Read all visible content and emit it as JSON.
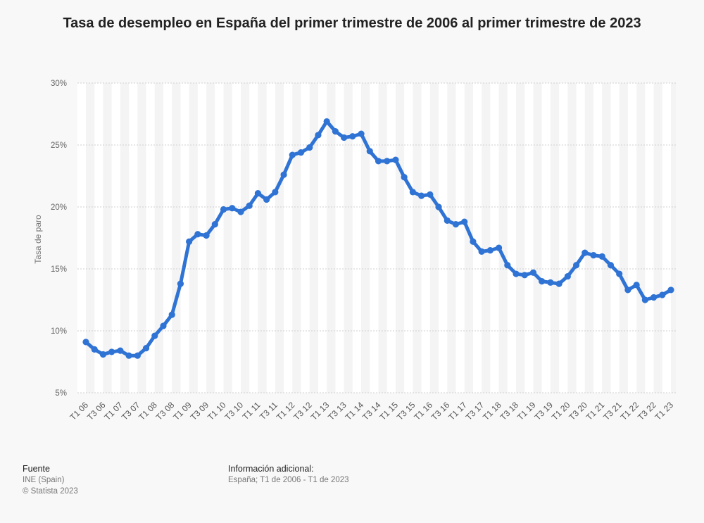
{
  "chart_data": {
    "type": "line",
    "title": "Tasa de desempleo en España del primer trimestre de 2006 al primer trimestre de 2023",
    "ylabel": "Tasa de paro",
    "xlabel": "",
    "ylim": [
      5,
      30
    ],
    "yticks": [
      5,
      10,
      15,
      20,
      25,
      30
    ],
    "ytick_suffix": "%",
    "grid": true,
    "line_color": "#2f73d4",
    "x": [
      "T1 06",
      "T2 06",
      "T3 06",
      "T4 06",
      "T1 07",
      "T2 07",
      "T3 07",
      "T4 07",
      "T1 08",
      "T2 08",
      "T3 08",
      "T4 08",
      "T1 09",
      "T2 09",
      "T3 09",
      "T4 09",
      "T1 10",
      "T2 10",
      "T3 10",
      "T4 10",
      "T1 11",
      "T2 11",
      "T3 11",
      "T4 11",
      "T1 12",
      "T2 12",
      "T3 12",
      "T4 12",
      "T1 13",
      "T2 13",
      "T3 13",
      "T4 13",
      "T1 14",
      "T2 14",
      "T3 14",
      "T4 14",
      "T1 15",
      "T2 15",
      "T3 15",
      "T4 15",
      "T1 16",
      "T2 16",
      "T3 16",
      "T4 16",
      "T1 17",
      "T2 17",
      "T3 17",
      "T4 17",
      "T1 18",
      "T2 18",
      "T3 18",
      "T4 18",
      "T1 19",
      "T2 19",
      "T3 19",
      "T4 19",
      "T1 20",
      "T2 20",
      "T3 20",
      "T4 20",
      "T1 21",
      "T2 21",
      "T3 21",
      "T4 21",
      "T1 22",
      "T2 22",
      "T3 22",
      "T4 22",
      "T1 23"
    ],
    "xtick_labels": [
      "T1 06",
      "T3 06",
      "T1 07",
      "T3 07",
      "T1 08",
      "T3 08",
      "T1 09",
      "T3 09",
      "T1 10",
      "T3 10",
      "T1 11",
      "T3 11",
      "T1 12",
      "T3 12",
      "T1 13",
      "T3 13",
      "T1 14",
      "T3 14",
      "T1 15",
      "T3 15",
      "T1 16",
      "T3 16",
      "T1 17",
      "T3 17",
      "T1 18",
      "T3 18",
      "T1 19",
      "T3 19",
      "T1 20",
      "T3 20",
      "T1 21",
      "T3 21",
      "T1 22",
      "T3 22",
      "T1 23"
    ],
    "values": [
      9.1,
      8.5,
      8.1,
      8.3,
      8.4,
      8.0,
      8.0,
      8.6,
      9.6,
      10.4,
      11.3,
      13.8,
      17.2,
      17.8,
      17.7,
      18.6,
      19.8,
      19.9,
      19.6,
      20.1,
      21.1,
      20.6,
      21.2,
      22.6,
      24.2,
      24.4,
      24.8,
      25.8,
      26.9,
      26.1,
      25.6,
      25.7,
      25.9,
      24.5,
      23.7,
      23.7,
      23.8,
      22.4,
      21.2,
      20.9,
      21.0,
      20.0,
      18.9,
      18.6,
      18.8,
      17.2,
      16.4,
      16.5,
      16.7,
      15.3,
      14.6,
      14.5,
      14.7,
      14.0,
      13.9,
      13.8,
      14.4,
      15.3,
      16.3,
      16.1,
      16.0,
      15.3,
      14.6,
      13.3,
      13.7,
      12.5,
      12.7,
      12.9,
      13.3
    ]
  },
  "footer": {
    "source_heading": "Fuente",
    "source_line1": "INE (Spain)",
    "source_line2": "© Statista 2023",
    "info_heading": "Información adicional:",
    "info_line1": "España; T1 de 2006 - T1 de 2023"
  }
}
